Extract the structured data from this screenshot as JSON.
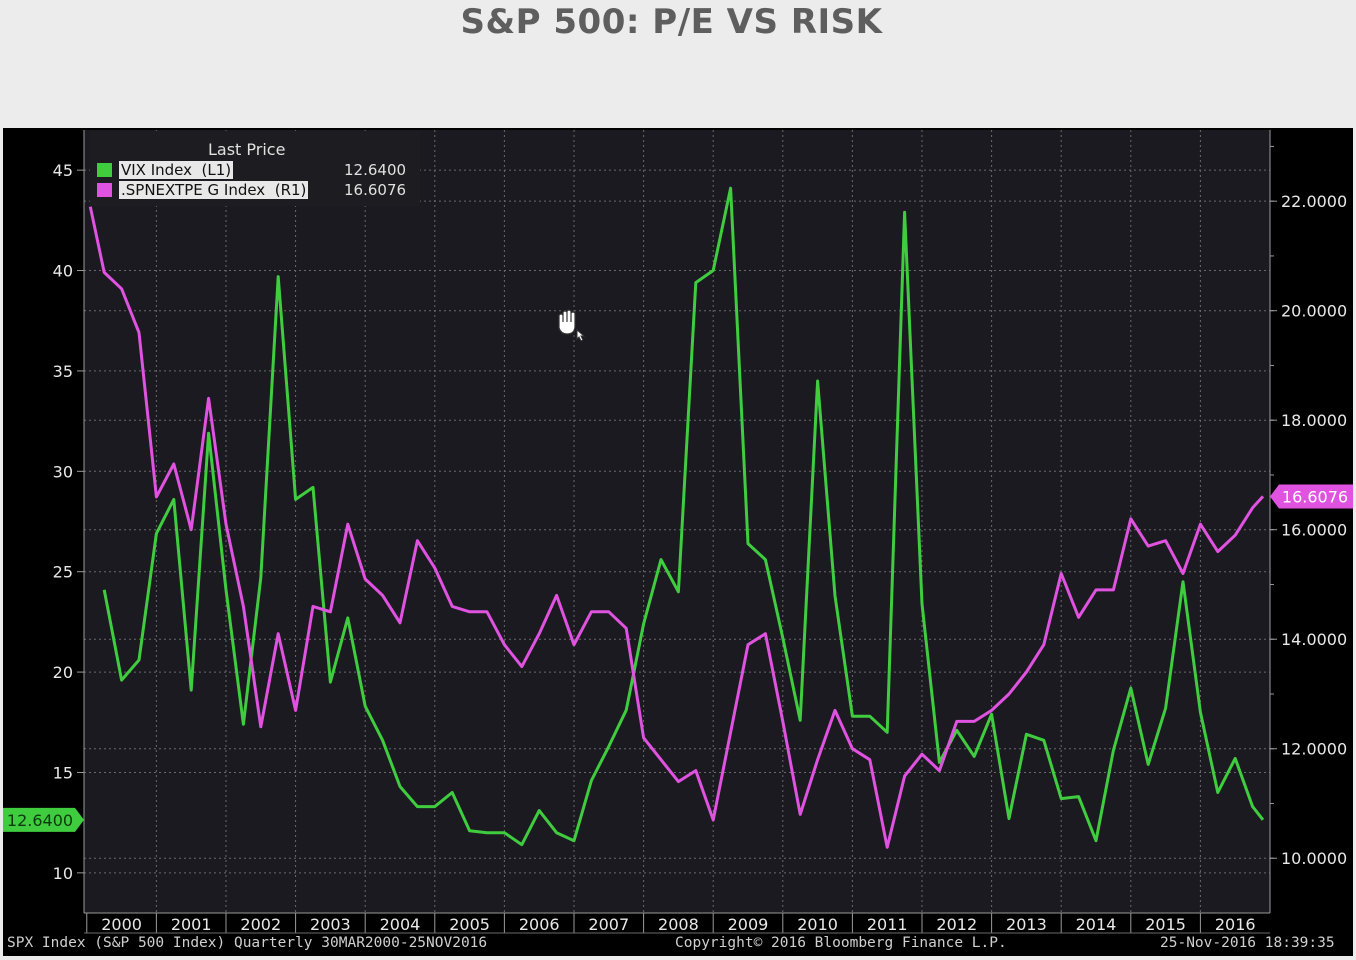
{
  "title": "S&P 500: P/E VS RISK",
  "legend": {
    "header": "Last Price",
    "items": [
      {
        "name": "VIX Index  (L1)",
        "value": "12.6400",
        "color": "#3fcc3f"
      },
      {
        "name": ".SPNEXTPE G Index  (R1)",
        "value": "16.6076",
        "color": "#e052e0"
      }
    ]
  },
  "footer": {
    "left": "SPX Index (S&P 500 Index)  Quarterly 30MAR2000-25NOV2016",
    "center": "Copyright© 2016 Bloomberg Finance L.P.",
    "right": "25-Nov-2016 18:39:35"
  },
  "icons": {
    "cursor": "grab-hand-cursor-icon"
  },
  "chart_data": {
    "type": "line",
    "x_ticks": [
      "2000",
      "2001",
      "2002",
      "2003",
      "2004",
      "2005",
      "2006",
      "2007",
      "2008",
      "2009",
      "2010",
      "2011",
      "2012",
      "2013",
      "2014",
      "2015",
      "2016"
    ],
    "x_range": [
      2000.0,
      2017.0
    ],
    "left_axis": {
      "min": 8,
      "max": 47,
      "ticks": [
        10,
        15,
        20,
        25,
        30,
        35,
        40,
        45
      ]
    },
    "right_axis": {
      "min": 9,
      "max": 23.3,
      "ticks": [
        "10.0000",
        "12.0000",
        "14.0000",
        "16.0000",
        "18.0000",
        "20.0000",
        "22.0000"
      ]
    },
    "last_value_labels": {
      "left": "12.6400",
      "right": "16.6076"
    },
    "grid": true,
    "legend_position": "top-left",
    "series": [
      {
        "name": "VIX Index (L1)",
        "axis": "left",
        "color": "#3fcc3f",
        "x": [
          2000.25,
          2000.5,
          2000.75,
          2001.0,
          2001.25,
          2001.5,
          2001.75,
          2002.0,
          2002.25,
          2002.5,
          2002.75,
          2003.0,
          2003.25,
          2003.5,
          2003.75,
          2004.0,
          2004.25,
          2004.5,
          2004.75,
          2005.0,
          2005.25,
          2005.5,
          2005.75,
          2006.0,
          2006.25,
          2006.5,
          2006.75,
          2007.0,
          2007.25,
          2007.5,
          2007.75,
          2008.0,
          2008.25,
          2008.5,
          2008.75,
          2009.0,
          2009.25,
          2009.5,
          2009.75,
          2010.0,
          2010.25,
          2010.5,
          2010.75,
          2011.0,
          2011.25,
          2011.5,
          2011.75,
          2012.0,
          2012.25,
          2012.5,
          2012.75,
          2013.0,
          2013.25,
          2013.5,
          2013.75,
          2014.0,
          2014.25,
          2014.5,
          2014.75,
          2015.0,
          2015.25,
          2015.5,
          2015.75,
          2016.0,
          2016.25,
          2016.5,
          2016.75,
          2016.9
        ],
        "y": [
          24.1,
          19.6,
          20.6,
          26.9,
          28.6,
          19.1,
          31.9,
          24.1,
          17.4,
          24.7,
          39.7,
          28.6,
          29.2,
          19.5,
          22.7,
          18.3,
          16.6,
          14.3,
          13.3,
          13.3,
          14.0,
          12.1,
          12.0,
          12.0,
          11.4,
          13.1,
          12.0,
          11.6,
          14.6,
          16.3,
          18.1,
          22.4,
          25.6,
          24.0,
          39.4,
          40.0,
          44.1,
          26.4,
          25.6,
          21.7,
          17.6,
          34.5,
          23.8,
          17.8,
          17.8,
          17.0,
          42.9,
          23.4,
          15.5,
          17.1,
          15.8,
          17.9,
          12.7,
          16.9,
          16.6,
          13.7,
          13.8,
          11.6,
          16.1,
          19.2,
          15.4,
          18.2,
          24.5,
          18.0,
          14.0,
          15.7,
          13.3,
          12.64
        ]
      },
      {
        "name": ".SPNEXTPE G Index (R1)",
        "axis": "right",
        "color": "#e052e0",
        "x": [
          2000.05,
          2000.25,
          2000.5,
          2000.75,
          2001.0,
          2001.25,
          2001.5,
          2001.75,
          2002.0,
          2002.25,
          2002.5,
          2002.75,
          2003.0,
          2003.25,
          2003.5,
          2003.75,
          2004.0,
          2004.25,
          2004.5,
          2004.75,
          2005.0,
          2005.25,
          2005.5,
          2005.75,
          2006.0,
          2006.25,
          2006.5,
          2006.75,
          2007.0,
          2007.25,
          2007.5,
          2007.75,
          2008.0,
          2008.25,
          2008.5,
          2008.75,
          2009.0,
          2009.25,
          2009.5,
          2009.75,
          2010.0,
          2010.25,
          2010.5,
          2010.75,
          2011.0,
          2011.25,
          2011.5,
          2011.75,
          2012.0,
          2012.25,
          2012.5,
          2012.75,
          2013.0,
          2013.25,
          2013.5,
          2013.75,
          2014.0,
          2014.25,
          2014.5,
          2014.75,
          2015.0,
          2015.25,
          2015.5,
          2015.75,
          2016.0,
          2016.25,
          2016.5,
          2016.75,
          2016.9
        ],
        "y": [
          21.9,
          20.7,
          20.4,
          19.6,
          16.6,
          17.2,
          16.0,
          18.4,
          16.1,
          14.6,
          12.4,
          14.1,
          12.7,
          14.6,
          14.5,
          16.1,
          15.1,
          14.8,
          14.3,
          15.8,
          15.3,
          14.6,
          14.5,
          14.5,
          13.9,
          13.5,
          14.1,
          14.8,
          13.9,
          14.5,
          14.5,
          14.2,
          12.2,
          11.8,
          11.4,
          11.6,
          10.7,
          12.3,
          13.9,
          14.1,
          12.5,
          10.8,
          11.8,
          12.7,
          12.0,
          11.8,
          10.2,
          11.5,
          11.9,
          11.6,
          12.5,
          12.5,
          12.7,
          13.0,
          13.4,
          13.9,
          15.2,
          14.4,
          14.9,
          14.9,
          16.2,
          15.7,
          15.8,
          15.2,
          16.1,
          15.6,
          15.9,
          16.4,
          16.6076
        ]
      }
    ]
  }
}
